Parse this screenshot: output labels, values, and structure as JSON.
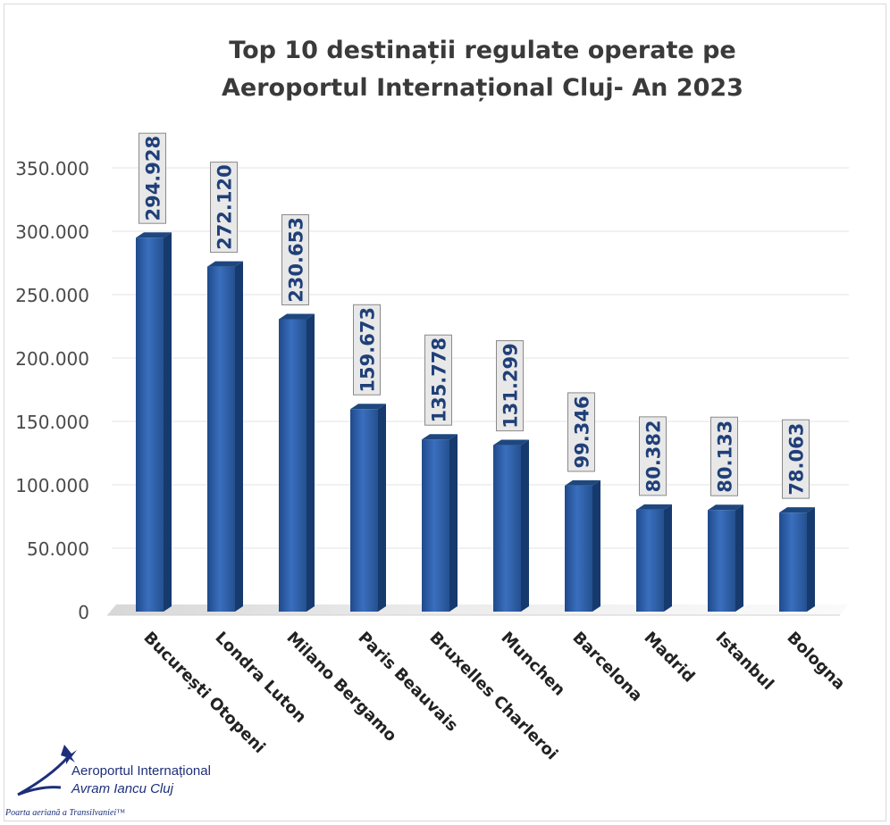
{
  "chart_data": {
    "type": "bar",
    "title_line1": "Top 10 destinații regulate operate pe",
    "title_line2": "Aeroportul Internațional Cluj- An 2023",
    "categories": [
      "București Otopeni",
      "Londra Luton",
      "Milano Bergamo",
      "Paris Beauvais",
      "Bruxelles Charleroi",
      "Munchen",
      "Barcelona",
      "Madrid",
      "Istanbul",
      "Bologna"
    ],
    "values": [
      294928,
      272120,
      230653,
      159673,
      135778,
      131299,
      99346,
      80382,
      80133,
      78063
    ],
    "value_labels": [
      "294.928",
      "272.120",
      "230.653",
      "159.673",
      "135.778",
      "131.299",
      "99.346",
      "80.382",
      "80.133",
      "78.063"
    ],
    "yticks": [
      0,
      50000,
      100000,
      150000,
      200000,
      250000,
      300000,
      350000
    ],
    "ytick_labels": [
      "0",
      "50.000",
      "100.000",
      "150.000",
      "200.000",
      "250.000",
      "300.000",
      "350.000"
    ],
    "ylim": [
      0,
      350000
    ],
    "grid": true,
    "bar_color": "#2e5fa8"
  },
  "logo": {
    "name_line1": "Aeroportul Internațional",
    "name_line2": "Avram Iancu Cluj",
    "tagline": "Poarta aeriană a Transilvaniei™"
  }
}
